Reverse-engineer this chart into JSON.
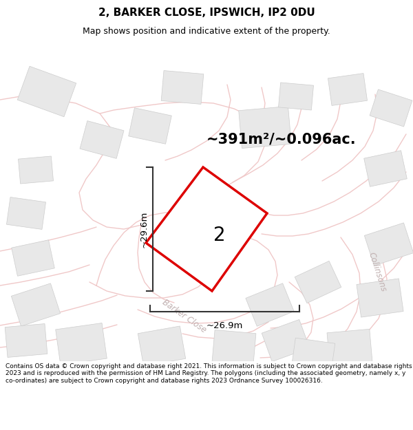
{
  "title": "2, BARKER CLOSE, IPSWICH, IP2 0DU",
  "subtitle": "Map shows position and indicative extent of the property.",
  "area_text": "~391m²/~0.096ac.",
  "dim_height": "~29.6m",
  "dim_width": "~26.9m",
  "label_number": "2",
  "street_label": "Barker Close",
  "street_label2": "Collinsons",
  "footer": "Contains OS data © Crown copyright and database right 2021. This information is subject to Crown copyright and database rights 2023 and is reproduced with the permission of HM Land Registry. The polygons (including the associated geometry, namely x, y co-ordinates) are subject to Crown copyright and database rights 2023 Ordnance Survey 100026316.",
  "bg_color": "#ffffff",
  "map_bg": "#f8f8f8",
  "plot_outline_color": "#dd0000",
  "road_color": "#f0c8c8",
  "building_color": "#e8e8e8",
  "building_outline": "#cccccc",
  "title_fontsize": 11,
  "subtitle_fontsize": 9,
  "area_fontsize": 15,
  "dim_fontsize": 9.5,
  "label_fontsize": 20,
  "footer_fontsize": 6.5
}
